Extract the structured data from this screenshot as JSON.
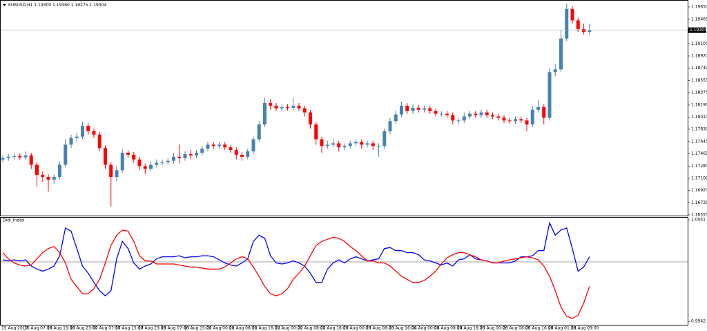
{
  "chart_data": [
    {
      "type": "candlestick",
      "title": "EURUSD,H1 1.19300 1.19360 1.19275 1.19304",
      "up_color": "#4682b4",
      "down_color": "#ff0000",
      "ylim": [
        1.16534,
        1.19722
      ],
      "yticks": [
        {
          "value": 1.1965,
          "label": "1.19650"
        },
        1.19465,
        {
          "value": 1.191,
          "label": "1.19100"
        },
        {
          "value": 1.1892,
          "label": "1.18920"
        },
        {
          "value": 1.1874,
          "label": "1.18740"
        },
        1.18555,
        1.18375,
        {
          "value": 1.1819,
          "label": "1.18190"
        },
        {
          "value": 1.1801,
          "label": "1.18010"
        },
        {
          "value": 1.1783,
          "label": "1.17830"
        },
        1.17645,
        1.17465,
        {
          "value": 1.1728,
          "label": "1.17280"
        },
        {
          "value": 1.171,
          "label": "1.17100"
        },
        {
          "value": 1.1692,
          "label": "1.16920"
        },
        1.16735,
        1.16555
      ],
      "last_price": {
        "value": 1.19304,
        "label": "1.19304"
      },
      "categories": [
        "15 Aug 2017",
        null,
        null,
        null,
        "16 Aug 07:00",
        null,
        null,
        null,
        "16 Aug 15:00",
        null,
        null,
        null,
        "16 Aug 23:00",
        null,
        null,
        null,
        "17 Aug 07:00",
        null,
        null,
        null,
        "17 Aug 15:00",
        null,
        null,
        null,
        "17 Aug 23:00",
        null,
        null,
        null,
        "18 Aug 07:00",
        null,
        null,
        null,
        "18 Aug 15:00",
        null,
        null,
        null,
        "21 Aug 00:00",
        null,
        null,
        null,
        "21 Aug 08:00",
        null,
        null,
        null,
        "21 Aug 16:00",
        null,
        null,
        null,
        "22 Aug 00:00",
        null,
        null,
        null,
        "22 Aug 08:00",
        null,
        null,
        null,
        "22 Aug 16:00",
        null,
        null,
        null,
        "23 Aug 00:00",
        null,
        null,
        null,
        "23 Aug 08:00",
        null,
        null,
        null,
        "23 Aug 16:00",
        null,
        null,
        null,
        "24 Aug 00:00",
        null,
        null,
        null,
        "24 Aug 08:00",
        null,
        null,
        null,
        "24 Aug 16:00",
        null,
        null,
        null,
        "25 Aug 00:00",
        null,
        null,
        null,
        "25 Aug 08:00",
        null,
        null,
        null,
        "25 Aug 16:00",
        null,
        null,
        null,
        "28 Aug 01:00",
        null,
        null,
        null,
        "28 Aug 09:00",
        null,
        null,
        null
      ],
      "ohlc": [
        [
          1.1738,
          1.1744,
          1.1734,
          1.174
        ],
        [
          1.174,
          1.1746,
          1.1736,
          1.1742
        ],
        [
          1.1742,
          1.1747,
          1.1738,
          1.1743
        ],
        [
          1.1743,
          1.1747,
          1.1737,
          1.1741
        ],
        [
          1.1741,
          1.175,
          1.1737,
          1.1744
        ],
        [
          1.1744,
          1.1748,
          1.1724,
          1.173
        ],
        [
          1.173,
          1.1734,
          1.1698,
          1.1715
        ],
        [
          1.1715,
          1.172,
          1.1705,
          1.1712
        ],
        [
          1.1712,
          1.1716,
          1.169,
          1.1708
        ],
        [
          1.1708,
          1.1716,
          1.1702,
          1.1712
        ],
        [
          1.1712,
          1.1735,
          1.1708,
          1.173
        ],
        [
          1.173,
          1.1768,
          1.1726,
          1.176
        ],
        [
          1.176,
          1.1775,
          1.1755,
          1.177
        ],
        [
          1.177,
          1.1778,
          1.1764,
          1.1772
        ],
        [
          1.1772,
          1.1794,
          1.1768,
          1.1788
        ],
        [
          1.1788,
          1.1792,
          1.1775,
          1.178
        ],
        [
          1.178,
          1.1784,
          1.177,
          1.1775
        ],
        [
          1.1775,
          1.1779,
          1.175,
          1.1755
        ],
        [
          1.1755,
          1.1759,
          1.1724,
          1.173
        ],
        [
          1.173,
          1.1734,
          1.1668,
          1.1712
        ],
        [
          1.1712,
          1.1728,
          1.1706,
          1.1722
        ],
        [
          1.1722,
          1.1753,
          1.1718,
          1.1748
        ],
        [
          1.1748,
          1.1752,
          1.174,
          1.1745
        ],
        [
          1.1745,
          1.1749,
          1.1733,
          1.1738
        ],
        [
          1.1738,
          1.1742,
          1.1722,
          1.1728
        ],
        [
          1.1728,
          1.1732,
          1.1716,
          1.1724
        ],
        [
          1.1724,
          1.1735,
          1.172,
          1.173
        ],
        [
          1.173,
          1.1738,
          1.1726,
          1.1733
        ],
        [
          1.1733,
          1.1738,
          1.1729,
          1.1734
        ],
        [
          1.1734,
          1.174,
          1.173,
          1.1736
        ],
        [
          1.1736,
          1.1748,
          1.1732,
          1.1742
        ],
        [
          1.1742,
          1.176,
          1.1732,
          1.174
        ],
        [
          1.174,
          1.175,
          1.1736,
          1.1746
        ],
        [
          1.1746,
          1.1752,
          1.1738,
          1.1744
        ],
        [
          1.1744,
          1.1752,
          1.174,
          1.1748
        ],
        [
          1.1748,
          1.1758,
          1.1744,
          1.1754
        ],
        [
          1.1754,
          1.1765,
          1.175,
          1.176
        ],
        [
          1.176,
          1.1764,
          1.1754,
          1.1758
        ],
        [
          1.1758,
          1.1764,
          1.1754,
          1.176
        ],
        [
          1.176,
          1.1764,
          1.1752,
          1.1756
        ],
        [
          1.1756,
          1.176,
          1.1748,
          1.1752
        ],
        [
          1.1752,
          1.1756,
          1.1738,
          1.1745
        ],
        [
          1.1745,
          1.1749,
          1.1736,
          1.1742
        ],
        [
          1.1742,
          1.1754,
          1.1738,
          1.175
        ],
        [
          1.175,
          1.1772,
          1.1746,
          1.1768
        ],
        [
          1.1768,
          1.1795,
          1.1764,
          1.179
        ],
        [
          1.179,
          1.183,
          1.1786,
          1.1822
        ],
        [
          1.1822,
          1.1828,
          1.1812,
          1.1818
        ],
        [
          1.1818,
          1.1822,
          1.181,
          1.1814
        ],
        [
          1.1814,
          1.182,
          1.181,
          1.1816
        ],
        [
          1.1816,
          1.182,
          1.1811,
          1.1815
        ],
        [
          1.1815,
          1.183,
          1.1811,
          1.1818
        ],
        [
          1.1818,
          1.1822,
          1.181,
          1.1814
        ],
        [
          1.1814,
          1.1818,
          1.1802,
          1.1808
        ],
        [
          1.1808,
          1.1812,
          1.1784,
          1.179
        ],
        [
          1.179,
          1.1794,
          1.176,
          1.1768
        ],
        [
          1.1768,
          1.1772,
          1.1748,
          1.1758
        ],
        [
          1.1758,
          1.1766,
          1.1754,
          1.176
        ],
        [
          1.176,
          1.1768,
          1.1756,
          1.1762
        ],
        [
          1.1762,
          1.1766,
          1.175,
          1.1756
        ],
        [
          1.1756,
          1.1762,
          1.1752,
          1.1758
        ],
        [
          1.1758,
          1.1766,
          1.1754,
          1.1762
        ],
        [
          1.1762,
          1.1768,
          1.1758,
          1.1764
        ],
        [
          1.1764,
          1.1768,
          1.1754,
          1.176
        ],
        [
          1.176,
          1.1766,
          1.1756,
          1.1762
        ],
        [
          1.1762,
          1.1766,
          1.1752,
          1.1758
        ],
        [
          1.1758,
          1.1762,
          1.1742,
          1.1758
        ],
        [
          1.1758,
          1.1784,
          1.1754,
          1.178
        ],
        [
          1.178,
          1.18,
          1.1776,
          1.1795
        ],
        [
          1.1795,
          1.181,
          1.1791,
          1.1805
        ],
        [
          1.1805,
          1.1824,
          1.1801,
          1.1818
        ],
        [
          1.1818,
          1.1822,
          1.1806,
          1.181
        ],
        [
          1.181,
          1.182,
          1.1806,
          1.1815
        ],
        [
          1.1815,
          1.1819,
          1.1808,
          1.1812
        ],
        [
          1.1812,
          1.1818,
          1.1808,
          1.1814
        ],
        [
          1.1814,
          1.1818,
          1.1806,
          1.181
        ],
        [
          1.181,
          1.1814,
          1.1802,
          1.1806
        ],
        [
          1.1806,
          1.181,
          1.1802,
          1.1806
        ],
        [
          1.1806,
          1.181,
          1.18,
          1.1804
        ],
        [
          1.1804,
          1.1808,
          1.179,
          1.1796
        ],
        [
          1.1796,
          1.18,
          1.179,
          1.1796
        ],
        [
          1.1796,
          1.1808,
          1.1792,
          1.1802
        ],
        [
          1.1802,
          1.181,
          1.1798,
          1.1806
        ],
        [
          1.1806,
          1.181,
          1.18,
          1.1804
        ],
        [
          1.1804,
          1.1812,
          1.18,
          1.1808
        ],
        [
          1.1808,
          1.1812,
          1.18,
          1.1804
        ],
        [
          1.1804,
          1.1808,
          1.1798,
          1.1802
        ],
        [
          1.1802,
          1.1806,
          1.1796,
          1.18
        ],
        [
          1.18,
          1.1804,
          1.1792,
          1.1796
        ],
        [
          1.1796,
          1.18,
          1.1791,
          1.1795
        ],
        [
          1.1795,
          1.1802,
          1.1791,
          1.1798
        ],
        [
          1.1798,
          1.1802,
          1.1792,
          1.1796
        ],
        [
          1.1796,
          1.18,
          1.178,
          1.179
        ],
        [
          1.179,
          1.1818,
          1.1786,
          1.1812
        ],
        [
          1.1812,
          1.1826,
          1.1808,
          1.1816
        ],
        [
          1.1816,
          1.182,
          1.179,
          1.18
        ],
        [
          1.18,
          1.1874,
          1.1796,
          1.1868
        ],
        [
          1.1868,
          1.188,
          1.1862,
          1.1872
        ],
        [
          1.1872,
          1.193,
          1.1868,
          1.1918
        ],
        [
          1.1918,
          1.197,
          1.1914,
          1.1962
        ],
        [
          1.1962,
          1.1966,
          1.194,
          1.1945
        ],
        [
          1.1945,
          1.1949,
          1.1928,
          1.1932
        ],
        [
          1.1932,
          1.194,
          1.1924,
          1.1928
        ],
        [
          1.1928,
          1.194,
          1.1924,
          1.193
        ]
      ]
    },
    {
      "type": "line",
      "title": "Didi_Index",
      "ylim": [
        0.99388,
        1.00424
      ],
      "yticks": [
        1.0041,
        0.9942
      ],
      "levels": [
        1
      ],
      "level_color": "#808080",
      "series": [
        {
          "color": "#0000ff",
          "values": [
            1.0002,
            1.0001,
            1.0002,
            1.0001,
            1.0002,
            0.9996,
            0.9993,
            0.9991,
            0.9993,
            0.9996,
            1.0006,
            1.0033,
            1.003,
            1.0013,
            0.9996,
            0.9989,
            0.998,
            0.9972,
            0.9967,
            0.9972,
            1.0003,
            1.002,
            1.0013,
            0.9999,
            0.9993,
            0.9996,
            0.9998,
            1.0003,
            1.0005,
            1.0005,
            1.0005,
            1.0006,
            1.0004,
            1.0005,
            1.0005,
            1.0006,
            1.0006,
            1.0005,
            1.0002,
            0.9999,
            0.9997,
            0.9996,
            0.9999,
            1.0003,
            1.002,
            1.0026,
            1.0023,
            1.0006,
            0.9999,
            0.9998,
            0.9999,
            1.0001,
            0.9999,
            0.9996,
            0.9989,
            0.998,
            0.998,
            0.9993,
            0.9999,
            1.0002,
            0.9999,
            1.0003,
            1.0005,
            1.0003,
            1.0001,
            1.0002,
            1.0003,
            1.0013,
            1.0014,
            1.0011,
            1.0011,
            1.0009,
            1.0009,
            1.0007,
            1.0002,
            1.0001,
            0.9999,
            0.9997,
            0.9999,
            0.9996,
            1.0002,
            1.0003,
            1.0007,
            1.0003,
            1.0002,
            1.0001,
            0.9999,
            0.9999,
            0.9999,
            0.9999,
            1.0001,
            1.0005,
            1.0005,
            1.0006,
            1.0011,
            1.0011,
            1.0038,
            1.0026,
            1.0031,
            1.0033,
            1.0013,
            0.9991,
            0.9995,
            1.0005
          ]
        },
        {
          "color": "#ff0000",
          "values": [
            1.0009,
            1.0003,
            0.9999,
            0.9997,
            0.9996,
            0.9997,
            1.0003,
            1.0009,
            1.0013,
            1.0015,
            1.0009,
            0.9999,
            0.9983,
            0.9976,
            0.9969,
            0.9969,
            0.9974,
            0.9983,
            0.9999,
            1.0016,
            1.0026,
            1.0031,
            1.003,
            1.002,
            1.0006,
            1.0001,
            1.0001,
            0.9998,
            0.9998,
            0.9998,
            0.9998,
            0.9997,
            0.9996,
            0.9995,
            0.9995,
            0.9994,
            0.9993,
            0.9993,
            0.9993,
            0.9995,
            0.9999,
            1.0003,
            1.0005,
            1.0003,
            0.9995,
            0.9986,
            0.9976,
            0.9969,
            0.9967,
            0.9969,
            0.9974,
            0.9983,
            0.9989,
            0.9996,
            1.0006,
            1.0016,
            1.002,
            1.0022,
            1.0024,
            1.0023,
            1.002,
            1.0015,
            1.0011,
            1.0006,
            1.0001,
            1.0001,
            0.9999,
            0.9999,
            0.9996,
            0.9991,
            0.9986,
            0.9983,
            0.998,
            0.998,
            0.9982,
            0.9986,
            0.9991,
            0.9998,
            1.0004,
            1.0007,
            1.0009,
            1.0009,
            1.0007,
            1.0005,
            1.0002,
            1.0001,
            0.9999,
            0.9999,
            1.0001,
            1.0002,
            1.0003,
            1.0004,
            1.0005,
            1.0004,
            1.0002,
            0.9996,
            0.9986,
            0.9972,
            0.9956,
            0.9947,
            0.9945,
            0.9948,
            0.996,
            0.9976
          ]
        }
      ]
    }
  ]
}
